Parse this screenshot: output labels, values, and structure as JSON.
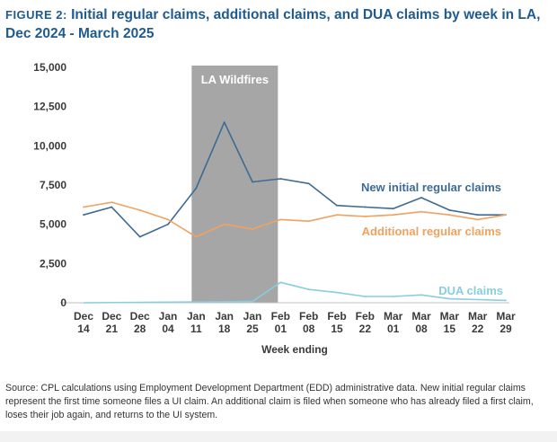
{
  "figure": {
    "label": "FIGURE 2:",
    "title": "Initial regular claims, additional claims, and DUA claims by week in LA, Dec 2024 - March 2025",
    "source": "Source: CPL calculations using Employment Development Department (EDD) administrative data. New initial regular claims represent the first time someone files a UI claim. An additional claim is filed when someone who has already filed a first claim, loses their job again, and returns to the UI system."
  },
  "chart_data": {
    "type": "line",
    "xlabel": "Week ending",
    "ylabel": "",
    "ylim": [
      0,
      15000
    ],
    "yticks": [
      "0",
      "2,500",
      "5,000",
      "7,500",
      "10,000",
      "12,500",
      "15,000"
    ],
    "ytick_values": [
      0,
      2500,
      5000,
      7500,
      10000,
      12500,
      15000
    ],
    "categories": [
      [
        "Dec",
        "14"
      ],
      [
        "Dec",
        "21"
      ],
      [
        "Dec",
        "28"
      ],
      [
        "Jan",
        "04"
      ],
      [
        "Jan",
        "11"
      ],
      [
        "Jan",
        "18"
      ],
      [
        "Jan",
        "25"
      ],
      [
        "Feb",
        "01"
      ],
      [
        "Feb",
        "08"
      ],
      [
        "Feb",
        "15"
      ],
      [
        "Feb",
        "22"
      ],
      [
        "Mar",
        "01"
      ],
      [
        "Mar",
        "08"
      ],
      [
        "Mar",
        "15"
      ],
      [
        "Mar",
        "22"
      ],
      [
        "Mar",
        "29"
      ]
    ],
    "grid": false,
    "shaded_region": {
      "label": "LA Wildfires",
      "from_index": 4,
      "to_index": 7,
      "color": "#a6a6a6"
    },
    "series": [
      {
        "name": "New initial regular claims",
        "color": "#3d6b95",
        "values": [
          5600,
          6100,
          4200,
          5000,
          7300,
          11500,
          7700,
          7900,
          7600,
          6200,
          6100,
          6000,
          6700,
          5900,
          5600,
          5600
        ]
      },
      {
        "name": "Additional regular claims",
        "color": "#f0a261",
        "values": [
          6100,
          6400,
          5900,
          5300,
          4200,
          5000,
          4700,
          5300,
          5200,
          5600,
          5500,
          5600,
          5800,
          5600,
          5300,
          5600
        ]
      },
      {
        "name": "DUA claims",
        "color": "#88cde0",
        "values": [
          null,
          null,
          null,
          null,
          null,
          null,
          80,
          1300,
          850,
          650,
          400,
          400,
          500,
          250,
          200,
          150
        ]
      }
    ]
  }
}
